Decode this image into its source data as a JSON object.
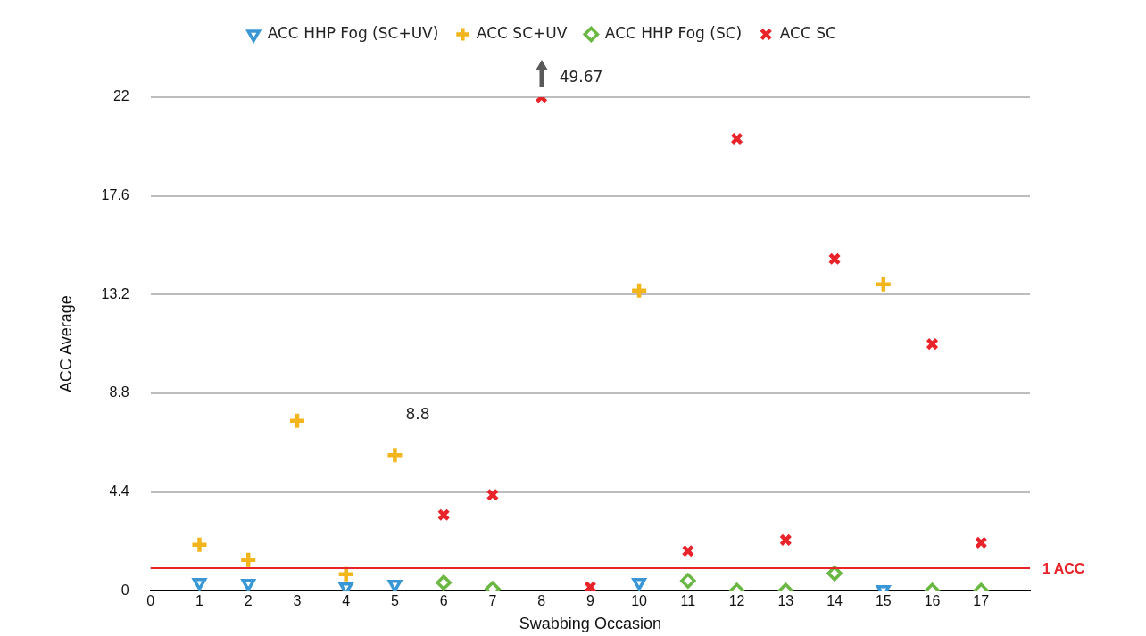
{
  "chart_data": {
    "type": "scatter",
    "xlabel": "Swabbing Occasion",
    "ylabel": "ACC Average",
    "xlim": [
      0,
      18
    ],
    "xticks": [
      0,
      1,
      2,
      3,
      4,
      5,
      6,
      7,
      8,
      9,
      10,
      11,
      12,
      13,
      14,
      15,
      16,
      17
    ],
    "ylim": [
      0,
      22
    ],
    "yticks": [
      0,
      4.4,
      8.8,
      13.2,
      17.6,
      22
    ],
    "grid": "y",
    "legend": "top",
    "series": [
      {
        "name": "ACC HHP Fog (SC+UV)",
        "color": "#3a97d6",
        "marker": "triangle",
        "x": [
          1,
          2,
          4,
          5,
          10,
          15
        ],
        "values": [
          0.36,
          0.32,
          0.16,
          0.28,
          0.36,
          0.04
        ]
      },
      {
        "name": "ACC SC+UV",
        "color": "#f2b51b",
        "marker": "cross",
        "x": [
          1,
          2,
          3,
          4,
          5,
          10,
          15
        ],
        "values": [
          2.05,
          1.37,
          7.57,
          0.73,
          6.04,
          13.38,
          13.66
        ]
      },
      {
        "name": "ACC HHP Fog (SC)",
        "color": "#6ab843",
        "marker": "diamond",
        "x": [
          6,
          7,
          11,
          12,
          13,
          14,
          16,
          17
        ],
        "values": [
          0.36,
          0.08,
          0.44,
          0,
          0,
          0.77,
          0,
          0
        ]
      },
      {
        "name": "ACC SC",
        "color": "#e8232a",
        "marker": "x",
        "x": [
          6,
          7,
          8,
          9,
          11,
          12,
          13,
          14,
          16,
          17
        ],
        "values": [
          3.38,
          4.27,
          22,
          0.16,
          1.77,
          20.15,
          2.26,
          14.79,
          11.0,
          2.14
        ]
      }
    ],
    "ref_lines": [
      {
        "axis": "y",
        "value": 1,
        "label": "1 ACC",
        "color": "#e8232a"
      }
    ],
    "annotations": [
      {
        "text": "49.67",
        "x": 8,
        "y": 22
      },
      "8.8"
    ]
  }
}
